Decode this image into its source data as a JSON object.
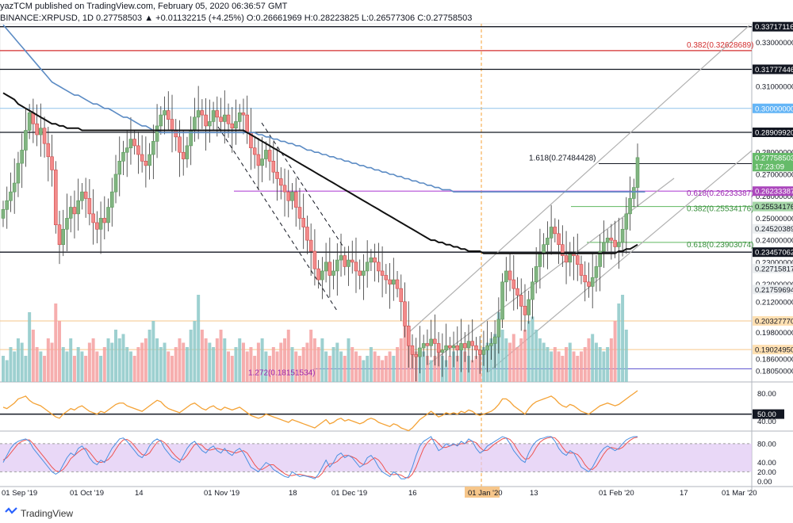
{
  "header": {
    "line1": "yazTCM published on TradingView.com, February 05, 2020 06:36:57 GMT",
    "line2": "BINANCE:XRPUSD, 1D 0.27758503 ▲ +0.01132215 (+4.25%) O:0.26661969 H:0.28223825 L:0.26577306 C:0.27758503"
  },
  "footer": {
    "brand": "TradingView",
    "logo_icon": "tradingview-logo-icon"
  },
  "colors": {
    "up": "#82b482",
    "down": "#f28b8b",
    "ma200": "#5b8bc4",
    "ma100": "#111111",
    "fib_red": "#d32f2f",
    "fib_purple": "#b44cd6",
    "fib_green": "#5fb85f",
    "rsi": "#f4a235",
    "stoch_k": "#4a90e2",
    "stoch_d": "#ef5350",
    "stoch_band": "#e0c8f4",
    "vol_up": "#8cc8c8",
    "vol_down": "#f4a0a0"
  },
  "chart_data": {
    "type": "candlestick",
    "symbol": "BINANCE:XRPUSD",
    "interval": "1D",
    "ylim": [
      0.1755,
      0.3385
    ],
    "x_ticks": [
      "01 Sep '19",
      "01 Oct '19",
      "14",
      "01 Nov '19",
      "18",
      "01 Dec '19",
      "16",
      "01 Jan '20",
      "13",
      "01 Feb '20",
      "17",
      "01 Mar '20"
    ],
    "price_axis_labels": [
      "0.33000000",
      "0.31000000",
      "0.28000000",
      "0.27000000",
      "0.26000000",
      "0.25000000",
      "0.24000000",
      "0.23000000",
      "0.22000000",
      "0.21200000",
      "0.19800000",
      "0.18600000",
      "0.18050000"
    ],
    "highlighted_price_labels": [
      {
        "text": "0.33717116",
        "value": 0.33717116,
        "style": "dark"
      },
      {
        "text": "0.31777446",
        "value": 0.31777446,
        "style": "dark"
      },
      {
        "text": "0.30000000",
        "value": 0.3,
        "style": "blue"
      },
      {
        "text": "0.28909920",
        "value": 0.2890992,
        "style": "dark"
      },
      {
        "text": "0.27758503",
        "value": 0.27758503,
        "style": "green"
      },
      {
        "text": "17:23:09",
        "value": 0.2735,
        "style": "green"
      },
      {
        "text": "0.26233387",
        "value": 0.26233387,
        "style": "purple"
      },
      {
        "text": "0.25534176",
        "value": 0.25534176,
        "style": "lightgreen"
      },
      {
        "text": "0.24520389",
        "value": 0.24520389,
        "style": "gray"
      },
      {
        "text": "0.23457062",
        "value": 0.23457062,
        "style": "dark"
      },
      {
        "text": "0.22715817",
        "value": 0.22715817,
        "style": "gray"
      },
      {
        "text": "0.21759694",
        "value": 0.21759694,
        "style": "gray"
      },
      {
        "text": "0.20327770",
        "value": 0.2032777,
        "style": "orange"
      },
      {
        "text": "0.19024950",
        "value": 0.1902495,
        "style": "orange"
      }
    ],
    "annotations": [
      {
        "text": "0.382(0.32628689)",
        "value": 0.32628689,
        "color": "red"
      },
      {
        "text": "1.618(0.27484428)",
        "value": 0.27484428,
        "color": "dark"
      },
      {
        "text": "0.618(0.26233387)",
        "value": 0.26233387,
        "color": "purple"
      },
      {
        "text": "0.382(0.25534176)",
        "value": 0.25534176,
        "color": "green"
      },
      {
        "text": "0.618(0.23903074)",
        "value": 0.23903074,
        "color": "green"
      },
      {
        "text": "1.272(0.18151534)",
        "value": 0.18151534,
        "color": "purple"
      }
    ],
    "horizontal_levels": [
      {
        "value": 0.33717116,
        "color": "dark"
      },
      {
        "value": 0.32628689,
        "color": "red"
      },
      {
        "value": 0.31777446,
        "color": "dark"
      },
      {
        "value": 0.3,
        "color": "blue"
      },
      {
        "value": 0.2890992,
        "color": "dark"
      },
      {
        "value": 0.23457062,
        "color": "dark"
      },
      {
        "value": 0.2032777,
        "color": "orange"
      },
      {
        "value": 0.1902495,
        "color": "orange"
      },
      {
        "value": 0.18151534,
        "color": "purple"
      }
    ],
    "closes": [
      0.254,
      0.258,
      0.262,
      0.266,
      0.275,
      0.281,
      0.29,
      0.298,
      0.293,
      0.288,
      0.291,
      0.284,
      0.278,
      0.272,
      0.247,
      0.238,
      0.245,
      0.25,
      0.255,
      0.252,
      0.258,
      0.262,
      0.259,
      0.252,
      0.248,
      0.245,
      0.25,
      0.248,
      0.255,
      0.262,
      0.27,
      0.276,
      0.28,
      0.282,
      0.286,
      0.283,
      0.279,
      0.276,
      0.274,
      0.279,
      0.285,
      0.292,
      0.297,
      0.299,
      0.295,
      0.29,
      0.287,
      0.28,
      0.277,
      0.283,
      0.29,
      0.296,
      0.299,
      0.297,
      0.292,
      0.294,
      0.299,
      0.296,
      0.294,
      0.297,
      0.293,
      0.291,
      0.294,
      0.298,
      0.297,
      0.289,
      0.282,
      0.279,
      0.274,
      0.277,
      0.281,
      0.276,
      0.271,
      0.268,
      0.265,
      0.262,
      0.258,
      0.262,
      0.255,
      0.25,
      0.246,
      0.24,
      0.235,
      0.227,
      0.222,
      0.226,
      0.23,
      0.224,
      0.226,
      0.231,
      0.233,
      0.228,
      0.231,
      0.23,
      0.226,
      0.224,
      0.226,
      0.23,
      0.232,
      0.23,
      0.226,
      0.224,
      0.222,
      0.22,
      0.222,
      0.218,
      0.212,
      0.201,
      0.192,
      0.188,
      0.187,
      0.191,
      0.193,
      0.192,
      0.195,
      0.193,
      0.189,
      0.19,
      0.192,
      0.191,
      0.192,
      0.19,
      0.193,
      0.191,
      0.194,
      0.192,
      0.19,
      0.188,
      0.19,
      0.192,
      0.193,
      0.196,
      0.204,
      0.221,
      0.226,
      0.222,
      0.218,
      0.215,
      0.21,
      0.206,
      0.213,
      0.221,
      0.228,
      0.234,
      0.238,
      0.241,
      0.246,
      0.243,
      0.238,
      0.233,
      0.23,
      0.234,
      0.233,
      0.229,
      0.224,
      0.221,
      0.219,
      0.223,
      0.228,
      0.235,
      0.239,
      0.241,
      0.24,
      0.237,
      0.239,
      0.245,
      0.252,
      0.259,
      0.264,
      0.2776
    ],
    "ma200": [
      0.338,
      0.336,
      0.334,
      0.332,
      0.33,
      0.328,
      0.326,
      0.324,
      0.322,
      0.32,
      0.318,
      0.316,
      0.314,
      0.312,
      0.311,
      0.31,
      0.309,
      0.308,
      0.307,
      0.306,
      0.306,
      0.305,
      0.304,
      0.303,
      0.302,
      0.302,
      0.301,
      0.3,
      0.3,
      0.299,
      0.298,
      0.297,
      0.296,
      0.296,
      0.295,
      0.294,
      0.293,
      0.292,
      0.292,
      0.291,
      0.29,
      0.29,
      0.289,
      0.289,
      0.289,
      0.289,
      0.289,
      0.289,
      0.289,
      0.289,
      0.289,
      0.289,
      0.289,
      0.289,
      0.289,
      0.289,
      0.289,
      0.289,
      0.289,
      0.289,
      0.289,
      0.289,
      0.289,
      0.289,
      0.289,
      0.289,
      0.289,
      0.289,
      0.288,
      0.288,
      0.287,
      0.287,
      0.286,
      0.286,
      0.285,
      0.285,
      0.284,
      0.284,
      0.283,
      0.283,
      0.282,
      0.281,
      0.281,
      0.28,
      0.28,
      0.279,
      0.279,
      0.278,
      0.278,
      0.277,
      0.277,
      0.276,
      0.276,
      0.275,
      0.275,
      0.274,
      0.274,
      0.273,
      0.273,
      0.272,
      0.272,
      0.271,
      0.271,
      0.27,
      0.27,
      0.269,
      0.269,
      0.268,
      0.268,
      0.267,
      0.267,
      0.266,
      0.266,
      0.265,
      0.265,
      0.264,
      0.264,
      0.263,
      0.263,
      0.263,
      0.262,
      0.262,
      0.262,
      0.262,
      0.262,
      0.262,
      0.262,
      0.262,
      0.262,
      0.262,
      0.262,
      0.262,
      0.262,
      0.262,
      0.262,
      0.262,
      0.262,
      0.262,
      0.262,
      0.262,
      0.262,
      0.262,
      0.262,
      0.262,
      0.262,
      0.262,
      0.262,
      0.262,
      0.262,
      0.262,
      0.262,
      0.262,
      0.262,
      0.262,
      0.262,
      0.262,
      0.262,
      0.262,
      0.262,
      0.262,
      0.262,
      0.262,
      0.262,
      0.262,
      0.262,
      0.262,
      0.262,
      0.262,
      0.262,
      0.262,
      0.262,
      0.262
    ],
    "ma100": [
      0.307,
      0.306,
      0.305,
      0.304,
      0.302,
      0.301,
      0.3,
      0.299,
      0.298,
      0.297,
      0.296,
      0.295,
      0.294,
      0.293,
      0.293,
      0.292,
      0.292,
      0.291,
      0.291,
      0.291,
      0.291,
      0.29,
      0.29,
      0.29,
      0.29,
      0.29,
      0.29,
      0.29,
      0.29,
      0.29,
      0.29,
      0.29,
      0.29,
      0.29,
      0.29,
      0.29,
      0.29,
      0.29,
      0.29,
      0.29,
      0.29,
      0.29,
      0.29,
      0.29,
      0.29,
      0.29,
      0.29,
      0.29,
      0.29,
      0.29,
      0.29,
      0.29,
      0.29,
      0.29,
      0.29,
      0.29,
      0.29,
      0.29,
      0.29,
      0.29,
      0.29,
      0.29,
      0.29,
      0.29,
      0.29,
      0.289,
      0.288,
      0.287,
      0.286,
      0.285,
      0.284,
      0.283,
      0.282,
      0.281,
      0.28,
      0.279,
      0.278,
      0.277,
      0.276,
      0.275,
      0.274,
      0.273,
      0.272,
      0.271,
      0.27,
      0.269,
      0.268,
      0.267,
      0.266,
      0.265,
      0.264,
      0.263,
      0.262,
      0.261,
      0.26,
      0.259,
      0.258,
      0.257,
      0.256,
      0.255,
      0.254,
      0.253,
      0.252,
      0.251,
      0.25,
      0.249,
      0.248,
      0.247,
      0.246,
      0.245,
      0.244,
      0.243,
      0.242,
      0.241,
      0.24,
      0.24,
      0.239,
      0.239,
      0.238,
      0.238,
      0.237,
      0.237,
      0.236,
      0.236,
      0.235,
      0.235,
      0.235,
      0.235,
      0.234,
      0.234,
      0.234,
      0.234,
      0.234,
      0.234,
      0.234,
      0.234,
      0.234,
      0.234,
      0.234,
      0.234,
      0.234,
      0.234,
      0.234,
      0.234,
      0.234,
      0.234,
      0.234,
      0.234,
      0.234,
      0.234,
      0.234,
      0.234,
      0.234,
      0.234,
      0.234,
      0.234,
      0.234,
      0.234,
      0.234,
      0.234,
      0.234,
      0.234,
      0.234,
      0.234,
      0.235,
      0.235,
      0.236,
      0.236,
      0.237,
      0.238
    ],
    "volume_relative": [
      0.3,
      0.25,
      0.4,
      0.35,
      0.5,
      0.45,
      0.3,
      0.8,
      0.6,
      0.4,
      0.35,
      0.3,
      0.5,
      0.45,
      0.9,
      0.7,
      0.4,
      0.35,
      0.5,
      0.3,
      0.4,
      0.35,
      0.3,
      0.45,
      0.5,
      0.35,
      0.3,
      0.4,
      0.5,
      0.45,
      0.6,
      0.5,
      0.55,
      0.4,
      0.35,
      0.3,
      0.4,
      0.45,
      0.5,
      0.6,
      0.7,
      0.5,
      0.4,
      0.45,
      0.35,
      0.3,
      0.4,
      0.5,
      0.45,
      0.4,
      0.6,
      0.7,
      1.0,
      0.6,
      0.5,
      0.45,
      0.4,
      0.5,
      0.6,
      0.5,
      0.35,
      0.3,
      0.4,
      0.5,
      0.45,
      0.35,
      0.4,
      0.3,
      0.45,
      0.5,
      0.35,
      0.3,
      0.4,
      0.35,
      0.45,
      0.5,
      0.6,
      0.4,
      0.35,
      0.3,
      0.4,
      0.45,
      0.6,
      0.5,
      0.4,
      0.5,
      0.35,
      0.3,
      0.4,
      0.45,
      0.35,
      0.3,
      0.5,
      0.4,
      0.35,
      0.3,
      0.25,
      0.3,
      0.4,
      0.35,
      0.3,
      0.25,
      0.3,
      0.35,
      0.3,
      0.4,
      0.5,
      0.7,
      0.5,
      0.4,
      0.35,
      0.3,
      0.35,
      0.3,
      0.25,
      0.3,
      0.35,
      0.3,
      0.25,
      0.3,
      0.35,
      0.3,
      0.4,
      0.35,
      0.3,
      0.25,
      0.3,
      0.35,
      0.4,
      0.45,
      0.5,
      0.55,
      0.8,
      0.6,
      0.5,
      0.45,
      0.55,
      0.4,
      0.5,
      0.6,
      0.7,
      0.75,
      0.6,
      0.5,
      0.45,
      0.4,
      0.35,
      0.4,
      0.35,
      0.3,
      0.4,
      0.45,
      0.35,
      0.3,
      0.35,
      0.4,
      0.5,
      0.55,
      0.45,
      0.4,
      0.35,
      0.4,
      0.5,
      0.7,
      0.9,
      1.0,
      0.6
    ],
    "rsi": {
      "ylim": [
        30,
        92
      ],
      "ticks": [
        "80.00",
        "50.00",
        "40.00"
      ],
      "highlight": "50.00",
      "values": [
        60,
        58,
        62,
        66,
        72,
        74,
        76,
        70,
        66,
        64,
        62,
        58,
        54,
        50,
        46,
        44,
        50,
        54,
        58,
        56,
        60,
        62,
        58,
        54,
        52,
        50,
        54,
        52,
        56,
        60,
        64,
        66,
        66,
        62,
        60,
        58,
        56,
        54,
        58,
        62,
        66,
        70,
        68,
        62,
        58,
        56,
        54,
        52,
        56,
        60,
        64,
        66,
        62,
        58,
        56,
        60,
        62,
        58,
        56,
        60,
        58,
        56,
        58,
        60,
        56,
        52,
        48,
        46,
        44,
        46,
        50,
        48,
        46,
        44,
        42,
        40,
        38,
        42,
        40,
        38,
        36,
        34,
        32,
        30,
        34,
        38,
        42,
        36,
        38,
        42,
        44,
        40,
        42,
        40,
        38,
        36,
        38,
        42,
        44,
        42,
        38,
        36,
        34,
        32,
        36,
        34,
        30,
        28,
        26,
        30,
        36,
        42,
        46,
        50,
        54,
        50,
        46,
        48,
        52,
        50,
        52,
        50,
        54,
        52,
        56,
        54,
        50,
        48,
        50,
        52,
        54,
        58,
        64,
        72,
        72,
        68,
        62,
        58,
        54,
        50,
        58,
        64,
        68,
        70,
        72,
        74,
        76,
        72,
        66,
        62,
        60,
        64,
        62,
        58,
        54,
        52,
        50,
        54,
        58,
        62,
        64,
        66,
        64,
        62,
        64,
        68,
        72,
        76,
        80,
        84
      ]
    },
    "stoch": {
      "ylim": [
        -8,
        100
      ],
      "ticks": [
        "80.00",
        "40.00",
        "20.00",
        "0.00"
      ],
      "band": [
        20,
        80
      ],
      "k": [
        40,
        55,
        70,
        80,
        85,
        88,
        90,
        85,
        70,
        60,
        50,
        40,
        30,
        20,
        15,
        20,
        35,
        50,
        60,
        55,
        70,
        75,
        65,
        50,
        40,
        35,
        45,
        40,
        55,
        70,
        80,
        90,
        92,
        85,
        75,
        65,
        55,
        50,
        60,
        75,
        85,
        90,
        85,
        70,
        60,
        50,
        45,
        40,
        55,
        70,
        80,
        85,
        75,
        65,
        60,
        70,
        75,
        65,
        60,
        70,
        60,
        55,
        65,
        70,
        60,
        45,
        30,
        25,
        20,
        30,
        40,
        35,
        25,
        20,
        15,
        10,
        8,
        20,
        15,
        10,
        12,
        10,
        8,
        5,
        15,
        30,
        45,
        30,
        40,
        55,
        60,
        50,
        55,
        50,
        40,
        30,
        35,
        50,
        55,
        45,
        30,
        20,
        15,
        10,
        20,
        15,
        5,
        5,
        10,
        30,
        55,
        75,
        85,
        90,
        95,
        80,
        65,
        70,
        80,
        75,
        80,
        75,
        85,
        80,
        90,
        85,
        70,
        60,
        65,
        75,
        80,
        85,
        90,
        95,
        92,
        80,
        65,
        55,
        45,
        40,
        60,
        75,
        85,
        90,
        92,
        95,
        95,
        85,
        70,
        60,
        55,
        65,
        60,
        45,
        30,
        25,
        20,
        30,
        45,
        60,
        70,
        75,
        70,
        65,
        70,
        80,
        88,
        92,
        95,
        95
      ],
      "d": [
        45,
        50,
        60,
        70,
        80,
        85,
        88,
        88,
        80,
        70,
        60,
        50,
        40,
        30,
        22,
        20,
        25,
        35,
        48,
        55,
        62,
        68,
        70,
        62,
        52,
        42,
        40,
        42,
        46,
        55,
        68,
        80,
        88,
        89,
        84,
        75,
        65,
        57,
        55,
        60,
        72,
        83,
        87,
        82,
        73,
        62,
        53,
        46,
        46,
        55,
        67,
        78,
        80,
        76,
        68,
        66,
        68,
        70,
        68,
        66,
        65,
        62,
        60,
        63,
        65,
        60,
        48,
        35,
        26,
        25,
        30,
        35,
        35,
        28,
        22,
        16,
        12,
        12,
        14,
        15,
        13,
        11,
        10,
        8,
        9,
        17,
        30,
        37,
        38,
        42,
        50,
        55,
        55,
        52,
        48,
        40,
        35,
        38,
        45,
        50,
        45,
        35,
        22,
        15,
        14,
        15,
        13,
        8,
        7,
        15,
        30,
        50,
        70,
        82,
        90,
        88,
        80,
        72,
        72,
        75,
        78,
        77,
        80,
        80,
        85,
        85,
        82,
        72,
        65,
        66,
        73,
        80,
        85,
        90,
        92,
        89,
        80,
        67,
        55,
        47,
        48,
        58,
        72,
        83,
        89,
        92,
        94,
        92,
        84,
        72,
        62,
        60,
        60,
        57,
        48,
        35,
        26,
        25,
        32,
        45,
        58,
        68,
        72,
        70,
        68,
        72,
        80,
        87,
        92,
        94
      ]
    }
  }
}
